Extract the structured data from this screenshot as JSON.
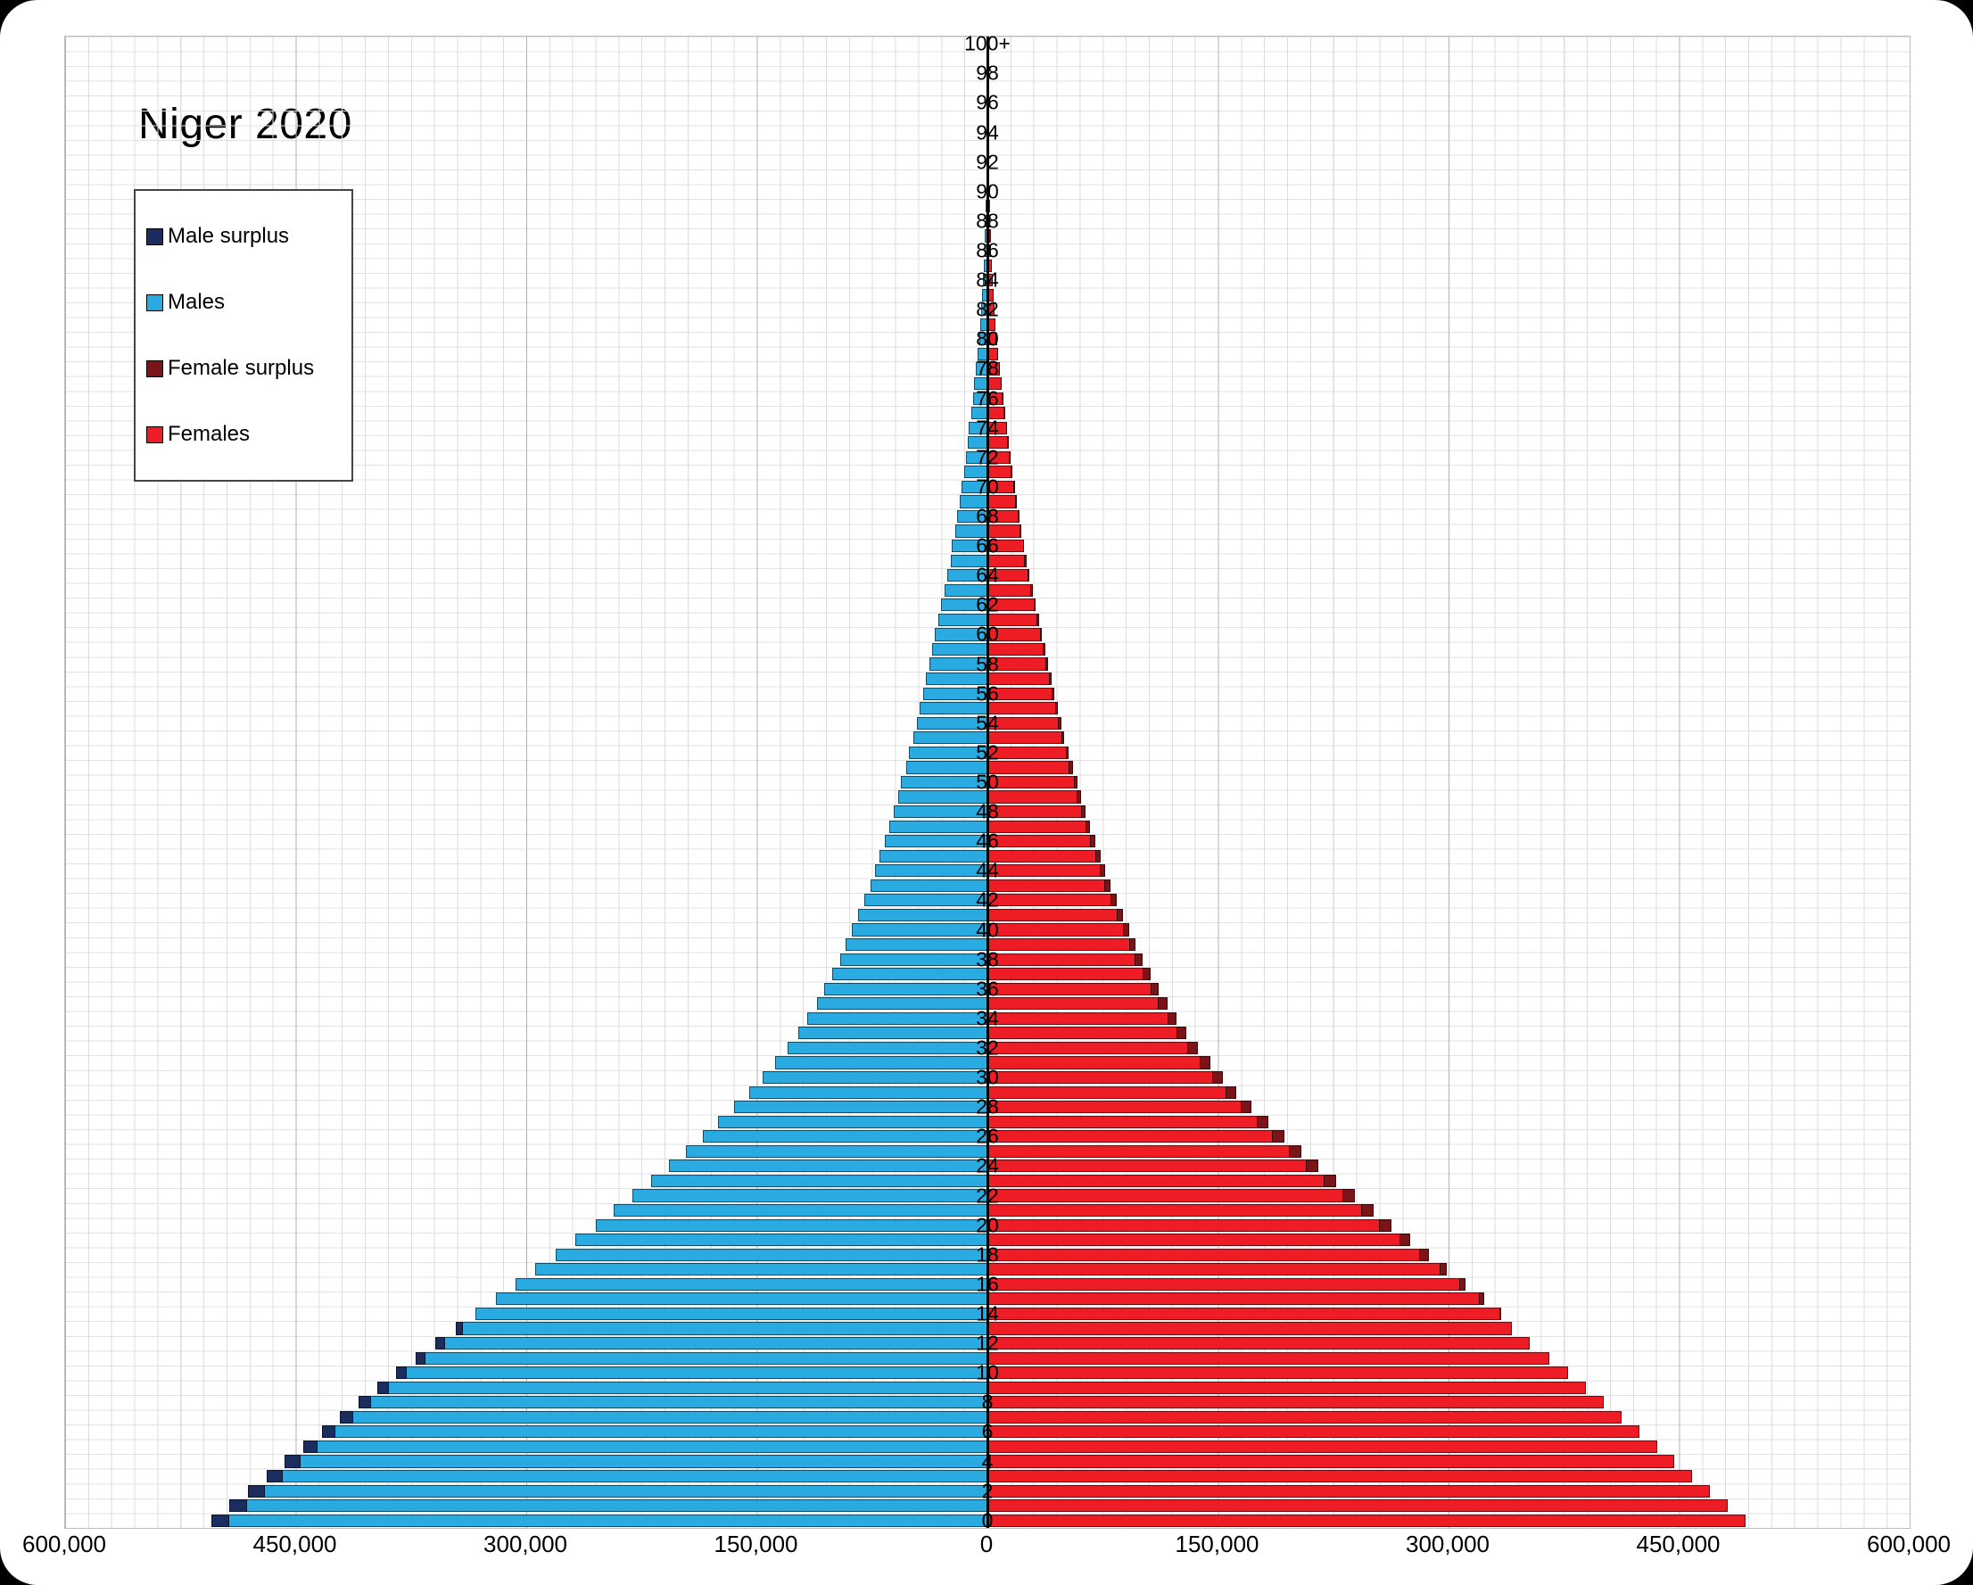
{
  "page": {
    "background": "#000000",
    "canvas_background": "#ffffff"
  },
  "chart_data": {
    "type": "bar",
    "variant": "population-pyramid",
    "title": "Niger 2020",
    "colors": {
      "male_surplus": "#1b2d5e",
      "males": "#29abe2",
      "female_surplus": "#7a1419",
      "females": "#ee1c25",
      "axis": "#000000"
    },
    "legend": [
      {
        "label": "Male surplus",
        "color_key": "male_surplus"
      },
      {
        "label": "Males",
        "color_key": "males"
      },
      {
        "label": "Female surplus",
        "color_key": "female_surplus"
      },
      {
        "label": "Females",
        "color_key": "females"
      }
    ],
    "x_axis": {
      "max": 600000,
      "major_tick_interval": 150000,
      "tick_labels_left_to_right": [
        "600,000",
        "450,000",
        "300,000",
        "150,000",
        "0",
        "150,000",
        "300,000",
        "450,000",
        "600,000"
      ]
    },
    "y_axis": {
      "unit": "single year of age",
      "age_min": 0,
      "age_max": 100,
      "tick_labels_bottom_to_top": [
        "0",
        "2",
        "4",
        "6",
        "8",
        "10",
        "12",
        "14",
        "16",
        "18",
        "20",
        "22",
        "24",
        "26",
        "28",
        "30",
        "32",
        "34",
        "36",
        "38",
        "40",
        "42",
        "44",
        "46",
        "48",
        "50",
        "52",
        "54",
        "56",
        "58",
        "60",
        "62",
        "64",
        "66",
        "68",
        "70",
        "72",
        "74",
        "76",
        "78",
        "80",
        "82",
        "84",
        "86",
        "88",
        "90",
        "92",
        "94",
        "96",
        "98",
        "100+"
      ]
    },
    "series": [
      {
        "name": "Males",
        "side": "left",
        "values": [
          505000,
          493000,
          481000,
          469000,
          457000,
          445000,
          433000,
          421000,
          409000,
          397000,
          385000,
          372000,
          359000,
          346000,
          333000,
          320000,
          307000,
          294000,
          281000,
          268000,
          255000,
          243000,
          231000,
          219000,
          207000,
          196000,
          185000,
          175000,
          165000,
          155000,
          146000,
          138000,
          130000,
          123000,
          117000,
          111000,
          106000,
          101000,
          96000,
          92000,
          88000,
          84000,
          80000,
          76000,
          73000,
          70000,
          67000,
          64000,
          61000,
          58000,
          56000,
          53000,
          51000,
          48000,
          46000,
          44000,
          42000,
          40000,
          38000,
          36000,
          34000,
          32000,
          30000,
          28000,
          26000,
          24000,
          23000,
          21000,
          20000,
          18000,
          17000,
          15000,
          14000,
          13000,
          12000,
          10500,
          9500,
          8500,
          7500,
          6500,
          5500,
          4800,
          4100,
          3500,
          2900,
          2400,
          2000,
          1600,
          1300,
          1000,
          800,
          600,
          450,
          330,
          240,
          170,
          120,
          80,
          50,
          30,
          20
        ]
      },
      {
        "name": "Females",
        "side": "right",
        "values": [
          493000,
          481500,
          470000,
          458500,
          447000,
          435500,
          424000,
          412500,
          401000,
          389500,
          378000,
          365500,
          353000,
          341000,
          334000,
          323000,
          311000,
          299000,
          287000,
          275000,
          263000,
          251000,
          239000,
          227000,
          215000,
          204000,
          193000,
          183000,
          172000,
          162000,
          153000,
          145000,
          137000,
          129500,
          123000,
          117000,
          111500,
          106000,
          101000,
          96500,
          92500,
          88000,
          84000,
          80000,
          76500,
          73500,
          70000,
          67000,
          64000,
          61000,
          58500,
          55500,
          53000,
          50000,
          48000,
          46000,
          43500,
          41500,
          39500,
          37500,
          35500,
          33500,
          31500,
          29500,
          27500,
          25500,
          24000,
          22000,
          21000,
          19000,
          18000,
          16000,
          15000,
          14000,
          13000,
          11500,
          10500,
          9300,
          8200,
          7100,
          6100,
          5300,
          4600,
          3900,
          3300,
          2700,
          2300,
          1900,
          1500,
          1200,
          950,
          750,
          570,
          430,
          320,
          230,
          160,
          110,
          75,
          50,
          40
        ]
      }
    ]
  }
}
